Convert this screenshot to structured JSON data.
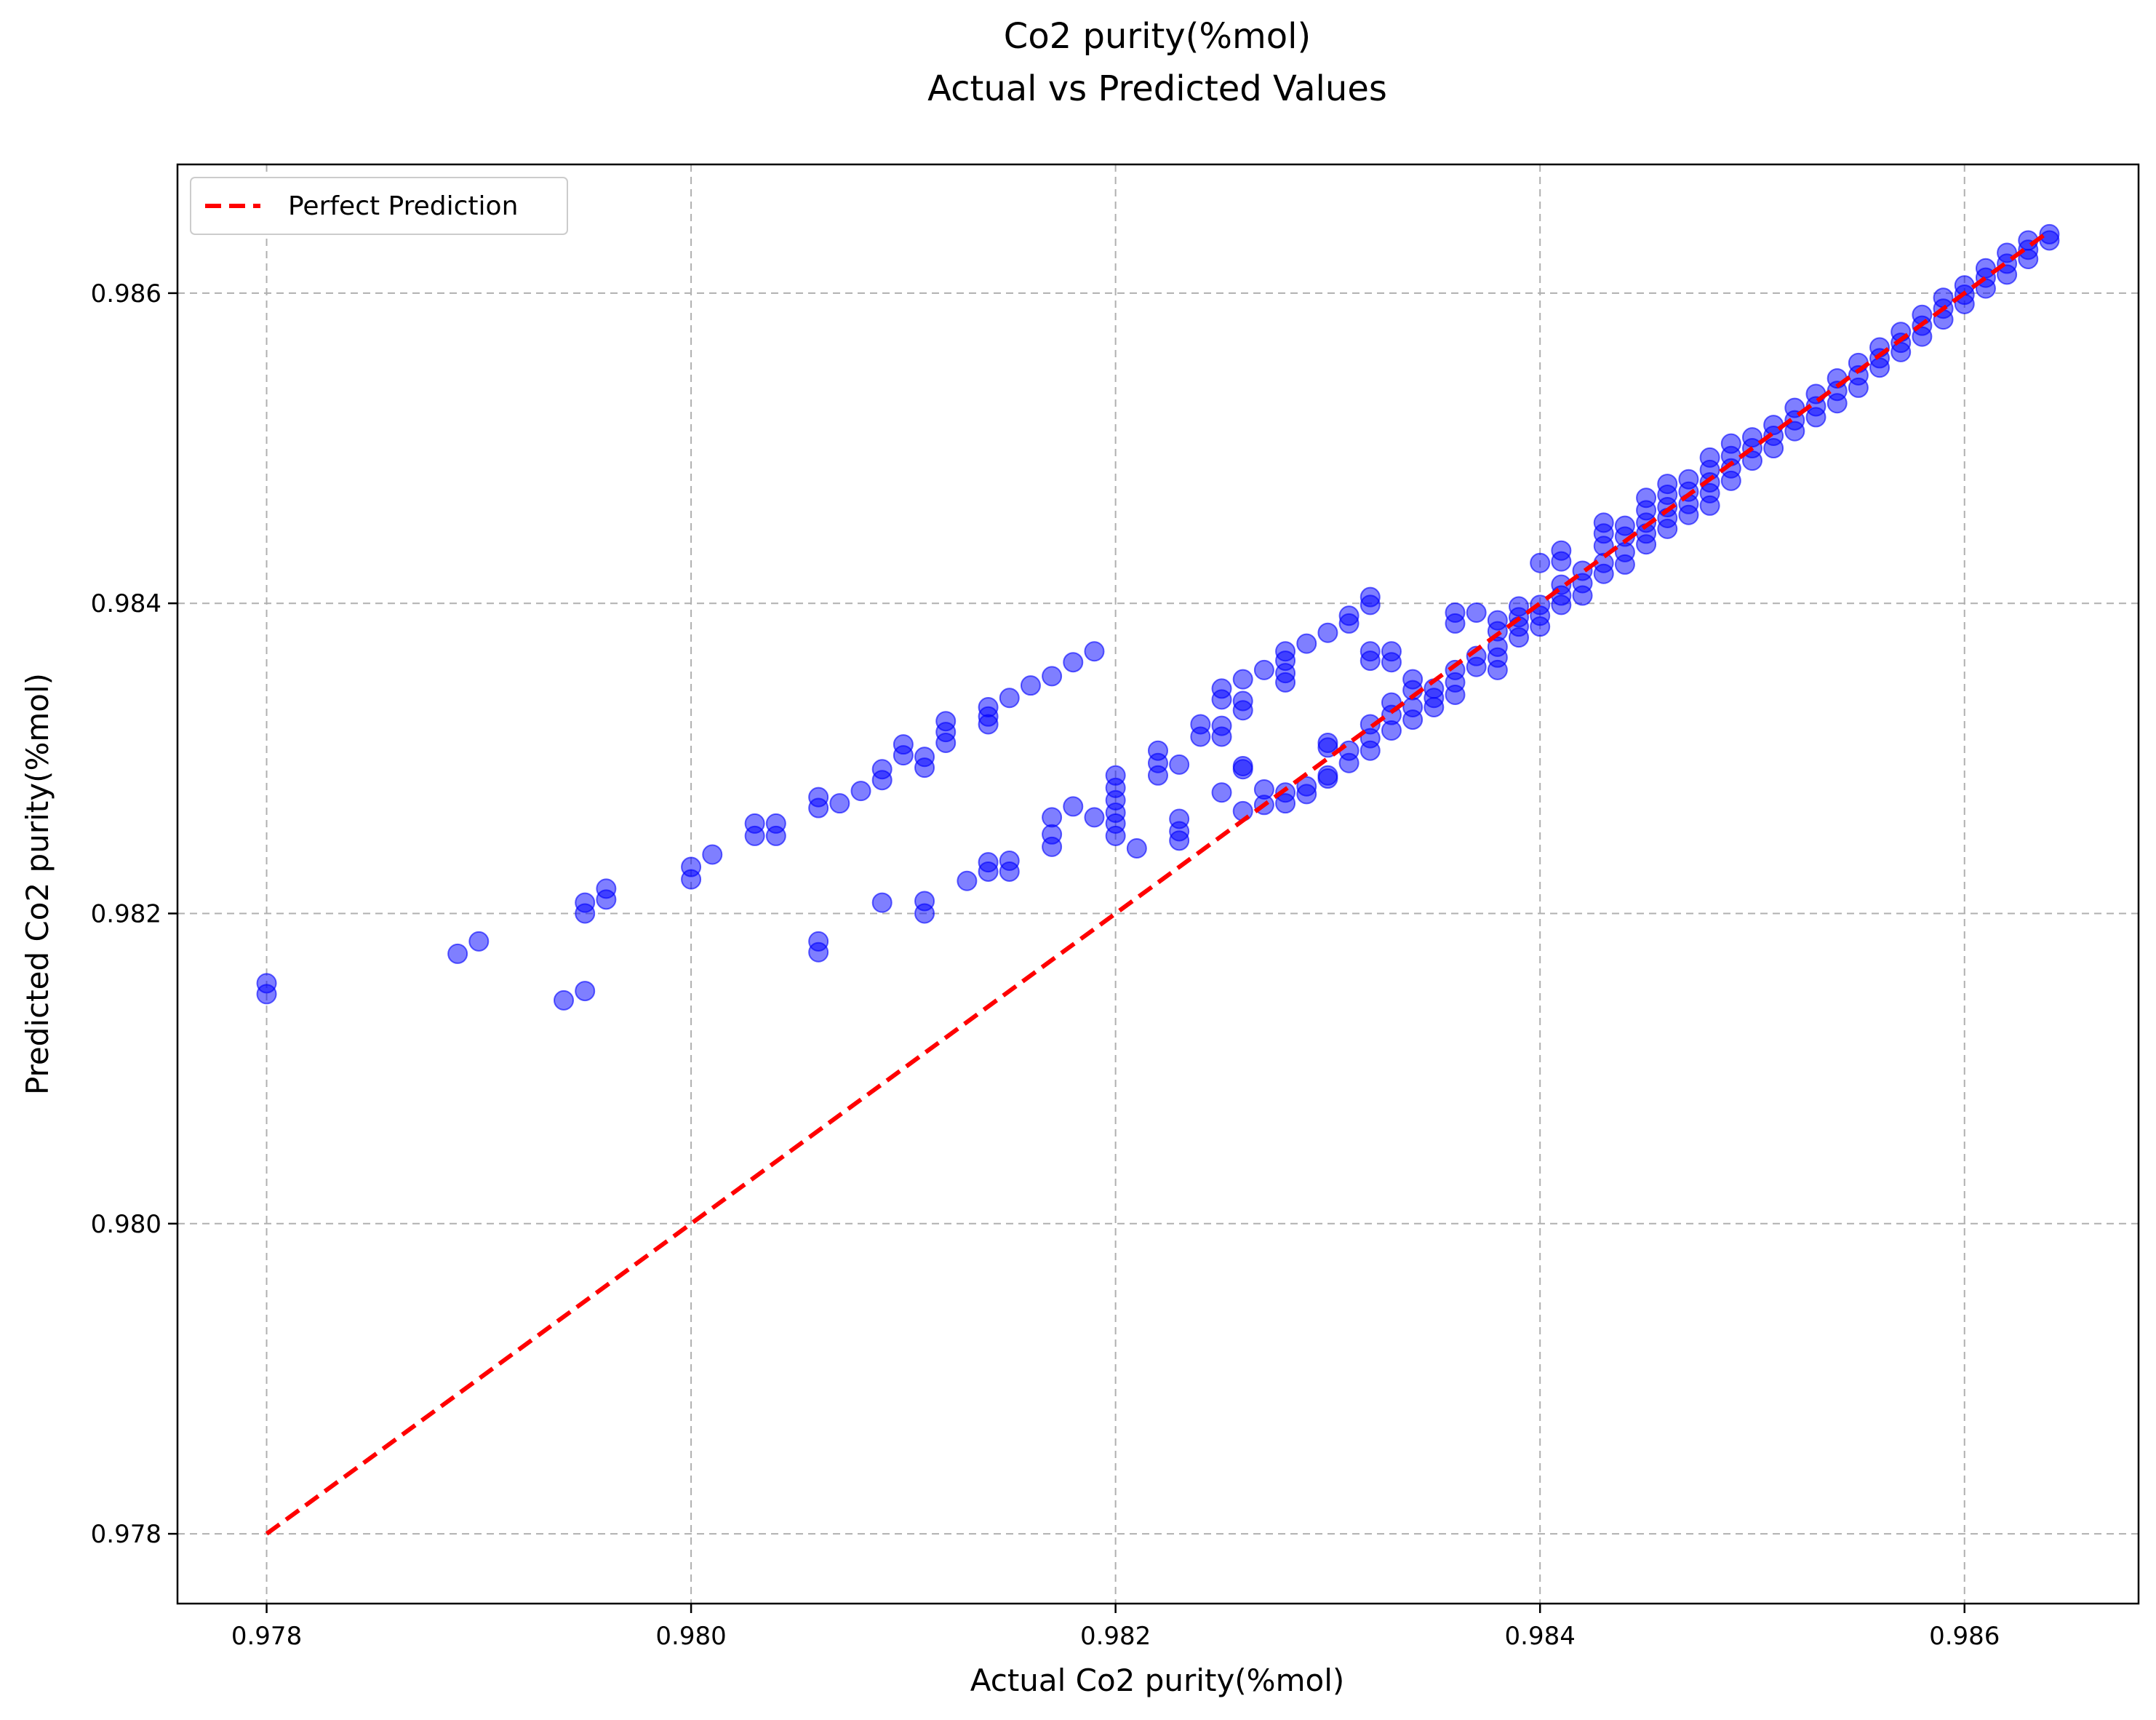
{
  "chart_data": {
    "type": "scatter",
    "title": "Co2 purity(%mol)",
    "subtitle": "Actual vs Predicted Values",
    "xlabel": "Actual Co2 purity(%mol)",
    "ylabel": "Predicted Co2 purity(%mol)",
    "xlim": [
      0.97758,
      0.98682
    ],
    "ylim": [
      0.97755,
      0.98683
    ],
    "xticks": [
      "0.978",
      "0.980",
      "0.982",
      "0.984",
      "0.986"
    ],
    "yticks": [
      "0.978",
      "0.980",
      "0.982",
      "0.984",
      "0.986"
    ],
    "grid": true,
    "legend": {
      "position": "top-left",
      "entries": [
        "Perfect Prediction"
      ]
    },
    "colors": {
      "points": "#0000ff",
      "reference": "#ff0000"
    },
    "reference_line": {
      "name": "Perfect Prediction",
      "from": [
        0.978,
        0.978
      ],
      "to": [
        0.9864,
        0.9864
      ]
    },
    "points": [
      [
        0.978,
        0.98155
      ],
      [
        0.978,
        0.98148
      ],
      [
        0.9789,
        0.98174
      ],
      [
        0.979,
        0.98182
      ],
      [
        0.9794,
        0.98144
      ],
      [
        0.9795,
        0.9815
      ],
      [
        0.9795,
        0.98207
      ],
      [
        0.9795,
        0.982
      ],
      [
        0.9796,
        0.98216
      ],
      [
        0.9796,
        0.98209
      ],
      [
        0.98,
        0.9823
      ],
      [
        0.98,
        0.98222
      ],
      [
        0.9801,
        0.98238
      ],
      [
        0.9803,
        0.98258
      ],
      [
        0.9803,
        0.9825
      ],
      [
        0.9804,
        0.98258
      ],
      [
        0.9804,
        0.9825
      ],
      [
        0.9806,
        0.98275
      ],
      [
        0.9806,
        0.98268
      ],
      [
        0.9807,
        0.98271
      ],
      [
        0.9808,
        0.98279
      ],
      [
        0.9809,
        0.98286
      ],
      [
        0.9809,
        0.98293
      ],
      [
        0.981,
        0.98309
      ],
      [
        0.981,
        0.98302
      ],
      [
        0.9811,
        0.98301
      ],
      [
        0.9811,
        0.98294
      ],
      [
        0.9812,
        0.98324
      ],
      [
        0.9812,
        0.98317
      ],
      [
        0.9812,
        0.9831
      ],
      [
        0.9814,
        0.98333
      ],
      [
        0.9814,
        0.98327
      ],
      [
        0.9814,
        0.98322
      ],
      [
        0.9815,
        0.98339
      ],
      [
        0.9816,
        0.98347
      ],
      [
        0.9817,
        0.98353
      ],
      [
        0.9818,
        0.98362
      ],
      [
        0.9819,
        0.98369
      ],
      [
        0.9806,
        0.98182
      ],
      [
        0.9806,
        0.98175
      ],
      [
        0.9809,
        0.98207
      ],
      [
        0.9811,
        0.98208
      ],
      [
        0.9811,
        0.982
      ],
      [
        0.9813,
        0.98221
      ],
      [
        0.9814,
        0.98233
      ],
      [
        0.9814,
        0.98227
      ],
      [
        0.9815,
        0.98234
      ],
      [
        0.9815,
        0.98227
      ],
      [
        0.9817,
        0.98262
      ],
      [
        0.9817,
        0.98251
      ],
      [
        0.9817,
        0.98243
      ],
      [
        0.9818,
        0.98269
      ],
      [
        0.9819,
        0.98262
      ],
      [
        0.982,
        0.98289
      ],
      [
        0.982,
        0.98281
      ],
      [
        0.982,
        0.98273
      ],
      [
        0.982,
        0.98265
      ],
      [
        0.982,
        0.98258
      ],
      [
        0.982,
        0.9825
      ],
      [
        0.9821,
        0.98242
      ],
      [
        0.9822,
        0.98305
      ],
      [
        0.9822,
        0.98297
      ],
      [
        0.9822,
        0.98289
      ],
      [
        0.9823,
        0.98296
      ],
      [
        0.9823,
        0.98261
      ],
      [
        0.9823,
        0.98253
      ],
      [
        0.9823,
        0.98247
      ],
      [
        0.9824,
        0.98322
      ],
      [
        0.9824,
        0.98314
      ],
      [
        0.9825,
        0.98345
      ],
      [
        0.9825,
        0.98338
      ],
      [
        0.9825,
        0.98321
      ],
      [
        0.9825,
        0.98314
      ],
      [
        0.9825,
        0.98278
      ],
      [
        0.9826,
        0.98351
      ],
      [
        0.9826,
        0.98337
      ],
      [
        0.9826,
        0.98331
      ],
      [
        0.9826,
        0.98295
      ],
      [
        0.9826,
        0.98293
      ],
      [
        0.9826,
        0.98266
      ],
      [
        0.9827,
        0.98357
      ],
      [
        0.9827,
        0.9828
      ],
      [
        0.9827,
        0.9827
      ],
      [
        0.9828,
        0.98369
      ],
      [
        0.9828,
        0.98363
      ],
      [
        0.9828,
        0.98355
      ],
      [
        0.9828,
        0.98349
      ],
      [
        0.9828,
        0.98278
      ],
      [
        0.9828,
        0.98271
      ],
      [
        0.9829,
        0.98374
      ],
      [
        0.9829,
        0.98282
      ],
      [
        0.9829,
        0.98277
      ],
      [
        0.983,
        0.98381
      ],
      [
        0.983,
        0.9831
      ],
      [
        0.983,
        0.98307
      ],
      [
        0.983,
        0.98289
      ],
      [
        0.983,
        0.98287
      ],
      [
        0.9831,
        0.98392
      ],
      [
        0.9831,
        0.98387
      ],
      [
        0.9831,
        0.98305
      ],
      [
        0.9831,
        0.98297
      ],
      [
        0.9832,
        0.98404
      ],
      [
        0.9832,
        0.98399
      ],
      [
        0.9832,
        0.98369
      ],
      [
        0.9832,
        0.98363
      ],
      [
        0.9832,
        0.98322
      ],
      [
        0.9832,
        0.98313
      ],
      [
        0.9832,
        0.98305
      ],
      [
        0.9833,
        0.98369
      ],
      [
        0.9833,
        0.98362
      ],
      [
        0.9833,
        0.98336
      ],
      [
        0.9833,
        0.98328
      ],
      [
        0.9833,
        0.98318
      ],
      [
        0.9834,
        0.98351
      ],
      [
        0.9834,
        0.98344
      ],
      [
        0.9834,
        0.98333
      ],
      [
        0.9834,
        0.98325
      ],
      [
        0.9835,
        0.98345
      ],
      [
        0.9835,
        0.98339
      ],
      [
        0.9835,
        0.98333
      ],
      [
        0.9836,
        0.98394
      ],
      [
        0.9836,
        0.98387
      ],
      [
        0.9836,
        0.98357
      ],
      [
        0.9836,
        0.98349
      ],
      [
        0.9836,
        0.98341
      ],
      [
        0.9837,
        0.98394
      ],
      [
        0.9837,
        0.98366
      ],
      [
        0.9837,
        0.98359
      ],
      [
        0.9838,
        0.98389
      ],
      [
        0.9838,
        0.98382
      ],
      [
        0.9838,
        0.98372
      ],
      [
        0.9838,
        0.98365
      ],
      [
        0.9838,
        0.98357
      ],
      [
        0.9839,
        0.98398
      ],
      [
        0.9839,
        0.98391
      ],
      [
        0.9839,
        0.98385
      ],
      [
        0.9839,
        0.98378
      ],
      [
        0.984,
        0.98426
      ],
      [
        0.984,
        0.98399
      ],
      [
        0.984,
        0.98392
      ],
      [
        0.984,
        0.98385
      ],
      [
        0.9841,
        0.98434
      ],
      [
        0.9841,
        0.98427
      ],
      [
        0.9841,
        0.98412
      ],
      [
        0.9841,
        0.98405
      ],
      [
        0.9841,
        0.98399
      ],
      [
        0.9842,
        0.98421
      ],
      [
        0.9842,
        0.98413
      ],
      [
        0.9842,
        0.98405
      ],
      [
        0.9843,
        0.98452
      ],
      [
        0.9843,
        0.98445
      ],
      [
        0.9843,
        0.98437
      ],
      [
        0.9843,
        0.98426
      ],
      [
        0.9843,
        0.98419
      ],
      [
        0.9844,
        0.9845
      ],
      [
        0.9844,
        0.98443
      ],
      [
        0.9844,
        0.98433
      ],
      [
        0.9844,
        0.98425
      ],
      [
        0.9845,
        0.98468
      ],
      [
        0.9845,
        0.9846
      ],
      [
        0.9845,
        0.98452
      ],
      [
        0.9845,
        0.98445
      ],
      [
        0.9845,
        0.98438
      ],
      [
        0.9846,
        0.98477
      ],
      [
        0.9846,
        0.9847
      ],
      [
        0.9846,
        0.98462
      ],
      [
        0.9846,
        0.98455
      ],
      [
        0.9846,
        0.98448
      ],
      [
        0.9847,
        0.9848
      ],
      [
        0.9847,
        0.98472
      ],
      [
        0.9847,
        0.98464
      ],
      [
        0.9847,
        0.98457
      ],
      [
        0.9848,
        0.98494
      ],
      [
        0.9848,
        0.98486
      ],
      [
        0.9848,
        0.98478
      ],
      [
        0.9848,
        0.98471
      ],
      [
        0.9848,
        0.98463
      ],
      [
        0.9849,
        0.98503
      ],
      [
        0.9849,
        0.98495
      ],
      [
        0.9849,
        0.98487
      ],
      [
        0.9849,
        0.98479
      ],
      [
        0.985,
        0.98507
      ],
      [
        0.985,
        0.985
      ],
      [
        0.985,
        0.98492
      ],
      [
        0.9851,
        0.98515
      ],
      [
        0.9851,
        0.98508
      ],
      [
        0.9851,
        0.985
      ],
      [
        0.9852,
        0.98526
      ],
      [
        0.9852,
        0.98518
      ],
      [
        0.9852,
        0.98511
      ],
      [
        0.9853,
        0.98535
      ],
      [
        0.9853,
        0.98527
      ],
      [
        0.9853,
        0.9852
      ],
      [
        0.9854,
        0.98545
      ],
      [
        0.9854,
        0.98537
      ],
      [
        0.9854,
        0.98529
      ],
      [
        0.9855,
        0.98555
      ],
      [
        0.9855,
        0.98547
      ],
      [
        0.9855,
        0.98539
      ],
      [
        0.9856,
        0.98565
      ],
      [
        0.9856,
        0.98558
      ],
      [
        0.9856,
        0.98552
      ],
      [
        0.9857,
        0.98575
      ],
      [
        0.9857,
        0.98568
      ],
      [
        0.9857,
        0.98562
      ],
      [
        0.9858,
        0.98586
      ],
      [
        0.9858,
        0.98579
      ],
      [
        0.9858,
        0.98572
      ],
      [
        0.9859,
        0.98597
      ],
      [
        0.9859,
        0.9859
      ],
      [
        0.9859,
        0.98583
      ],
      [
        0.986,
        0.98605
      ],
      [
        0.986,
        0.98599
      ],
      [
        0.986,
        0.98593
      ],
      [
        0.9861,
        0.98616
      ],
      [
        0.9861,
        0.9861
      ],
      [
        0.9861,
        0.98603
      ],
      [
        0.9862,
        0.98626
      ],
      [
        0.9862,
        0.98619
      ],
      [
        0.9862,
        0.98612
      ],
      [
        0.9863,
        0.98634
      ],
      [
        0.9863,
        0.98628
      ],
      [
        0.9863,
        0.98622
      ],
      [
        0.9864,
        0.98638
      ],
      [
        0.9864,
        0.98634
      ]
    ]
  }
}
